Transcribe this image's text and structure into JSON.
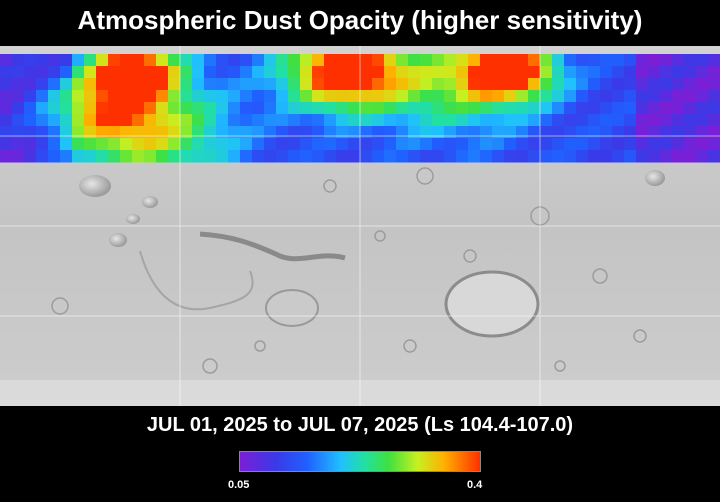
{
  "title": "Atmospheric Dust Opacity (higher sensitivity)",
  "date_range": "JUL 01, 2025 to JUL 07, 2025 (Ls 104.4-107.0)",
  "colorbar": {
    "min_label": "0.05",
    "max_label": "0.4",
    "colors": [
      "#7a1fd6",
      "#3a3ae8",
      "#2060ff",
      "#20c0ff",
      "#22e0a0",
      "#40e040",
      "#c8f020",
      "#ffb000",
      "#ff3000"
    ]
  },
  "map": {
    "base": "shaded-relief Mars surface (grayscale)",
    "overlay_band": "northern latitudes dust opacity heatmap"
  }
}
